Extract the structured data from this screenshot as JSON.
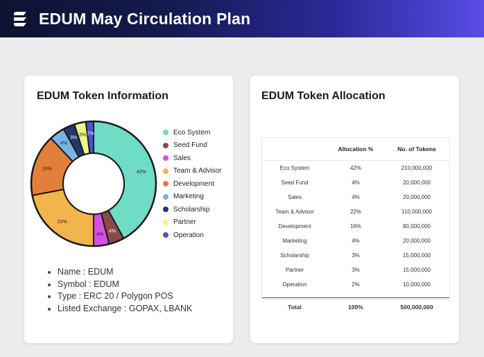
{
  "header": {
    "title": "EDUM May Circulation Plan"
  },
  "info_card": {
    "title": "EDUM Token Information",
    "details": [
      "Name : EDUM",
      "Symbol : EDUM",
      "Type : ERC 20 / Polygon POS",
      "Listed Exchange : GOPAX, LBANK"
    ]
  },
  "alloc_card": {
    "title": "EDUM Token Allocation",
    "columns": [
      "",
      "Allocation %",
      "No. of Tokens"
    ],
    "rows": [
      [
        "Eco System",
        "42%",
        "210,000,000"
      ],
      [
        "Seed Fund",
        "4%",
        "20,000,000"
      ],
      [
        "Sales",
        "4%",
        "20,000,000"
      ],
      [
        "Team & Advisor",
        "22%",
        "110,000,000"
      ],
      [
        "Development",
        "16%",
        "80,000,000"
      ],
      [
        "Marketing",
        "4%",
        "20,000,000"
      ],
      [
        "Scholarship",
        "3%",
        "15,000,000"
      ],
      [
        "Partner",
        "3%",
        "15,000,000"
      ],
      [
        "Operation",
        "2%",
        "10,000,000"
      ]
    ],
    "total": [
      "Total",
      "100%",
      "500,000,000"
    ]
  },
  "chart_data": {
    "type": "pie",
    "categories": [
      "Eco System",
      "Seed Fund",
      "Sales",
      "Team & Advisor",
      "Development",
      "Marketing",
      "Scholarship",
      "Partner",
      "Operation"
    ],
    "values": [
      42,
      4,
      4,
      22,
      16,
      4,
      3,
      3,
      2
    ],
    "data_labels": [
      "42%",
      "4%",
      "4%",
      "22%",
      "16%",
      "4%",
      "3%",
      "3%",
      "2%"
    ],
    "colors": [
      "#6fdcc5",
      "#8b4a48",
      "#d84fe4",
      "#f2b54b",
      "#e27f3a",
      "#79b4e6",
      "#213a68",
      "#eef68a",
      "#4b56c8"
    ],
    "donut": true,
    "legend_position": "right"
  }
}
